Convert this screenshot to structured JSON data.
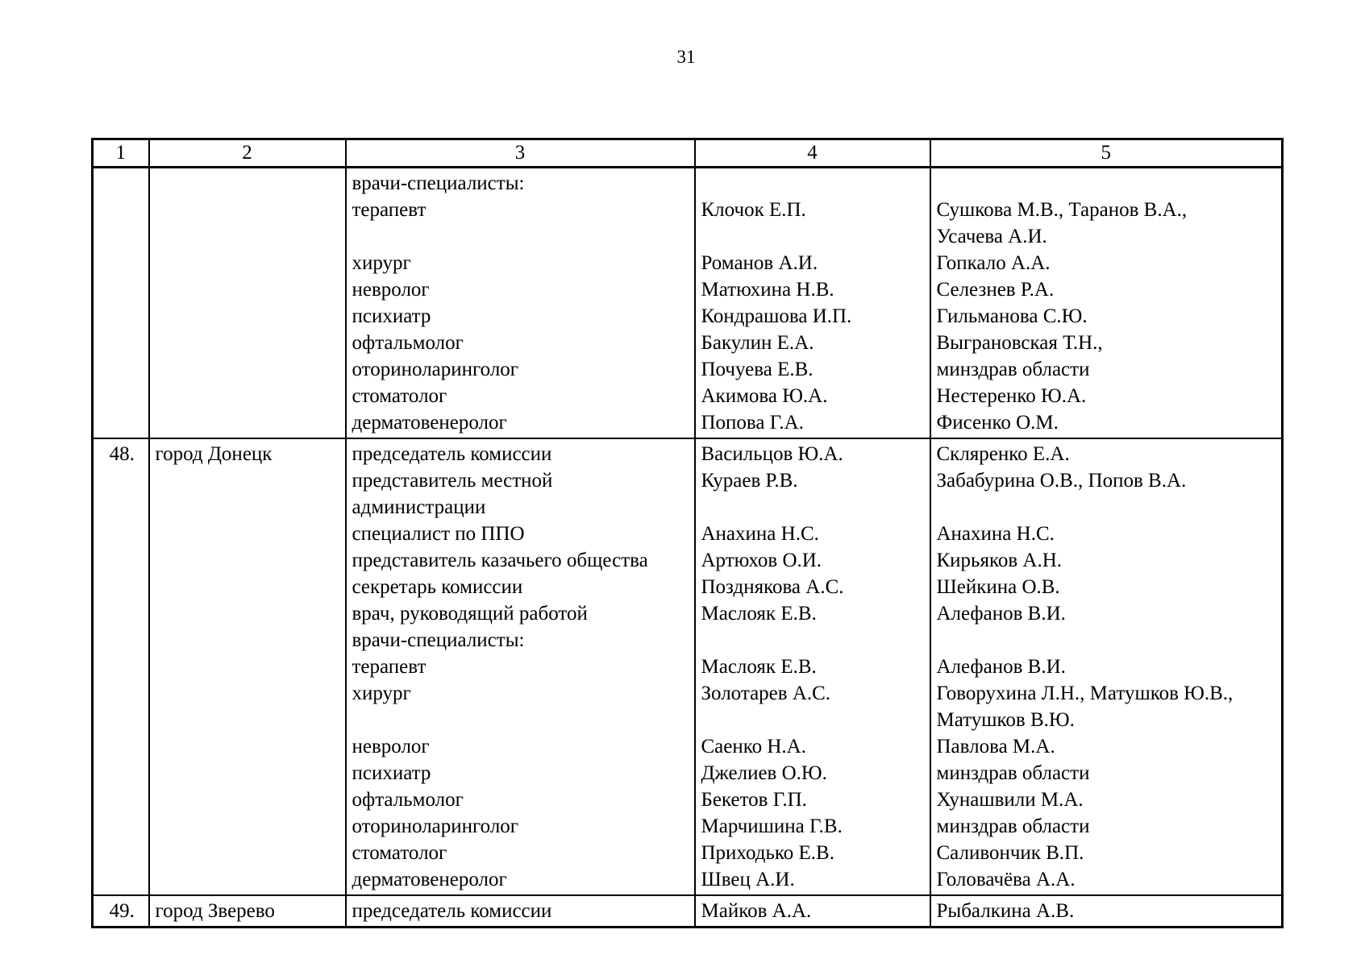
{
  "page": {
    "number": "31"
  },
  "table": {
    "headers": [
      "1",
      "2",
      "3",
      "4",
      "5"
    ],
    "rows": [
      {
        "num": "",
        "city": "",
        "lines": [
          [
            "врачи-специалисты:",
            "",
            ""
          ],
          [
            "терапевт",
            "Клочок Е.П.",
            "Сушкова М.В., Таранов В.А.,"
          ],
          [
            "",
            "",
            "Усачева А.И."
          ],
          [
            "хирург",
            "Романов А.И.",
            "Гопкало А.А."
          ],
          [
            "невролог",
            "Матюхина Н.В.",
            "Селезнев Р.А."
          ],
          [
            "психиатр",
            "Кондрашова И.П.",
            "Гильманова С.Ю."
          ],
          [
            "офтальмолог",
            "Бакулин Е.А.",
            "Выграновская Т.Н.,"
          ],
          [
            "оториноларинголог",
            "Почуева Е.В.",
            "минздрав области"
          ],
          [
            "стоматолог",
            "Акимова Ю.А.",
            "Нестеренко Ю.А."
          ],
          [
            "дерматовенеролог",
            "Попова Г.А.",
            "Фисенко О.М."
          ]
        ]
      },
      {
        "num": "48.",
        "city": "город Донецк",
        "lines": [
          [
            "председатель комиссии",
            "Васильцов Ю.А.",
            "Скляренко Е.А."
          ],
          [
            "представитель местной",
            "Кураев Р.В.",
            "Забабурина О.В., Попов В.А."
          ],
          [
            "администрации",
            "",
            ""
          ],
          [
            "специалист по ППО",
            "Анахина Н.С.",
            "Анахина Н.С."
          ],
          [
            "представитель казачьего общества",
            "Артюхов О.И.",
            "Кирьяков А.Н."
          ],
          [
            "секретарь комиссии",
            "Позднякова А.С.",
            "Шейкина О.В."
          ],
          [
            "врач, руководящий работой",
            "Маслояк Е.В.",
            "Алефанов В.И."
          ],
          [
            "врачи-специалисты:",
            "",
            ""
          ],
          [
            "терапевт",
            "Маслояк Е.В.",
            "Алефанов В.И."
          ],
          [
            "хирург",
            "Золотарев А.С.",
            "Говорухина Л.Н., Матушков Ю.В.,"
          ],
          [
            "",
            "",
            "Матушков В.Ю."
          ],
          [
            "невролог",
            "Саенко Н.А.",
            "Павлова М.А."
          ],
          [
            "психиатр",
            "Джелиев О.Ю.",
            "минздрав области"
          ],
          [
            "офтальмолог",
            "Бекетов Г.П.",
            "Хунашвили М.А."
          ],
          [
            "оториноларинголог",
            "Марчишина Г.В.",
            "минздрав области"
          ],
          [
            "стоматолог",
            "Приходько Е.В.",
            "Саливончик В.П."
          ],
          [
            "дерматовенеролог",
            "Швец А.И.",
            "Головачёва А.А."
          ]
        ]
      },
      {
        "num": "49.",
        "city": "город Зверево",
        "lines": [
          [
            "председатель комиссии",
            "Майков А.А.",
            "Рыбалкина А.В."
          ]
        ]
      }
    ]
  }
}
